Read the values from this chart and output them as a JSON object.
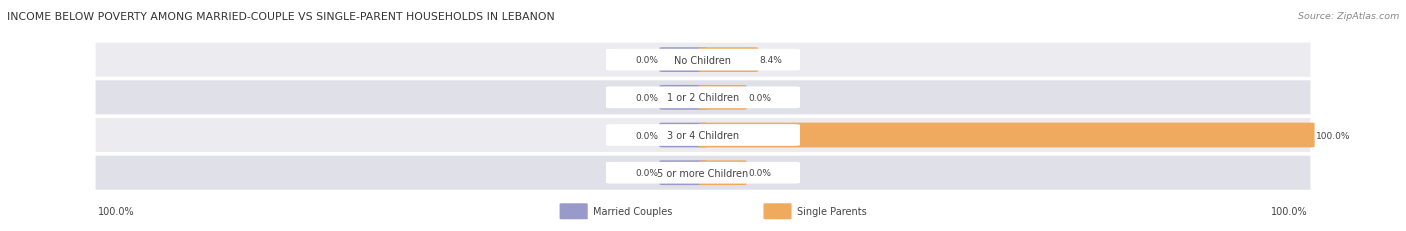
{
  "title": "INCOME BELOW POVERTY AMONG MARRIED-COUPLE VS SINGLE-PARENT HOUSEHOLDS IN LEBANON",
  "source": "Source: ZipAtlas.com",
  "categories": [
    "No Children",
    "1 or 2 Children",
    "3 or 4 Children",
    "5 or more Children"
  ],
  "married_values": [
    0.0,
    0.0,
    0.0,
    0.0
  ],
  "single_values": [
    8.4,
    0.0,
    100.0,
    0.0
  ],
  "married_color": "#9999cc",
  "single_color": "#f0aa60",
  "row_bg_odd": "#ebebf0",
  "row_bg_even": "#e0e0e8",
  "title_color": "#333333",
  "text_color": "#444444",
  "source_color": "#888888",
  "left_label": "100.0%",
  "right_label": "100.0%",
  "legend_married": "Married Couples",
  "legend_single": "Single Parents",
  "max_value": 100.0,
  "stub_value": 8.4
}
